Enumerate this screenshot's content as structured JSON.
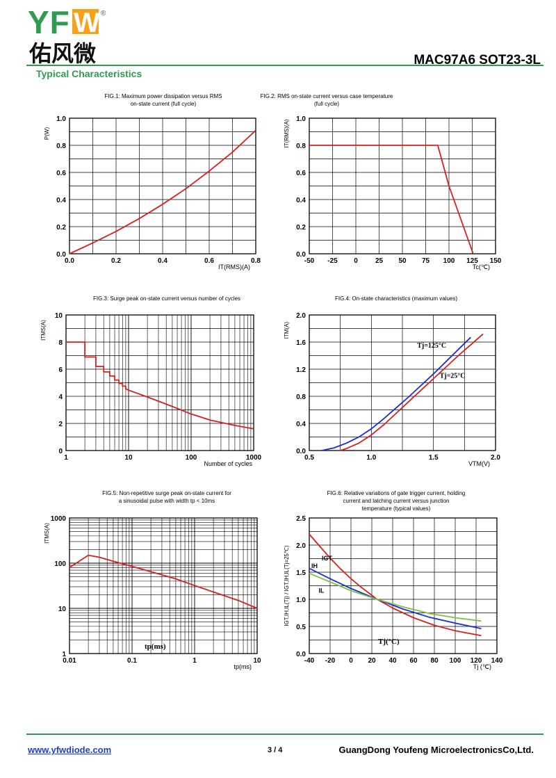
{
  "header": {
    "brand": "YFW",
    "brand_cn": "佑风微",
    "registered": "®",
    "part_number": "MAC97A6 SOT23-3L",
    "section": "Typical Characteristics"
  },
  "colors": {
    "green": "#2e9b4f",
    "red": "#d91e1e",
    "blue": "#1a2bd8",
    "lightgreen": "#7cc242",
    "orange": "#f4a21c"
  },
  "footer": {
    "website": "www.yfwdiode.com",
    "page": "3 / 4",
    "company": "GuangDong Youfeng MicroelectronicsCo,Ltd."
  },
  "chart_data": [
    {
      "id": "fig1",
      "type": "line",
      "title": [
        "FIG.1: Maximum power dissipation versus RMS",
        "on-state current (full cycle)"
      ],
      "ylabel": "P(W)",
      "xlabel": "I<sub>T(RMS)</sub>(A)",
      "xlabel_text": "IT(RMS)(A)",
      "xlim": [
        0,
        0.8
      ],
      "ylim": [
        0,
        1.0
      ],
      "xticks": [
        "0.0",
        "0.2",
        "0.4",
        "0.6",
        "0.8"
      ],
      "yticks": [
        "0.0",
        "0.2",
        "0.4",
        "0.6",
        "0.8",
        "1.0"
      ],
      "series": [
        {
          "color": "red",
          "x": [
            0,
            0.1,
            0.2,
            0.3,
            0.4,
            0.5,
            0.6,
            0.7,
            0.8
          ],
          "y": [
            0,
            0.08,
            0.165,
            0.26,
            0.365,
            0.48,
            0.61,
            0.75,
            0.91
          ]
        }
      ]
    },
    {
      "id": "fig2",
      "type": "line",
      "title": [
        "FIG.2: RMS on-state current versus case temperature",
        "(full cycle)"
      ],
      "ylabel": "IT(RMS)(A)",
      "xlabel_text": "Tc(℃)",
      "xlim": [
        -50,
        150
      ],
      "ylim": [
        0,
        1.0
      ],
      "xticks": [
        "-50",
        "-25",
        "0",
        "25",
        "50",
        "75",
        "100",
        "125",
        "150"
      ],
      "yticks": [
        "0.0",
        "0.2",
        "0.4",
        "0.6",
        "0.8",
        "1.0"
      ],
      "series": [
        {
          "color": "red",
          "x": [
            -50,
            88,
            100,
            126
          ],
          "y": [
            0.8,
            0.8,
            0.5,
            0
          ]
        }
      ]
    },
    {
      "id": "fig3",
      "type": "line",
      "title": [
        "FIG.3: Surge peak on-state current versus number of cycles"
      ],
      "ylabel": "ITMS(A)",
      "xlabel_text": "Number of cycles",
      "xscale": "log",
      "xlim": [
        1,
        1000
      ],
      "ylim": [
        0,
        10
      ],
      "xticks": [
        "1",
        "10",
        "100",
        "1000"
      ],
      "yticks": [
        "0",
        "2",
        "4",
        "6",
        "8",
        "10"
      ],
      "series": [
        {
          "color": "red",
          "x": [
            1,
            2,
            2,
            3,
            3,
            4,
            4,
            5,
            5,
            6,
            6,
            7,
            7,
            8,
            8,
            9,
            9,
            10,
            20,
            50,
            100,
            200,
            500,
            1000
          ],
          "y": [
            8,
            8,
            6.9,
            6.9,
            6.2,
            6.2,
            5.8,
            5.8,
            5.5,
            5.5,
            5.2,
            5.2,
            4.95,
            4.95,
            4.75,
            4.75,
            4.55,
            4.45,
            3.95,
            3.25,
            2.7,
            2.25,
            1.85,
            1.6
          ]
        }
      ]
    },
    {
      "id": "fig4",
      "type": "line",
      "title": [
        "FIG.4: On-state characteristics (maximum values)"
      ],
      "ylabel": "ITM(A)",
      "xlabel_text": "VTM(V)",
      "xlim": [
        0.5,
        2.0
      ],
      "ylim": [
        0,
        2.0
      ],
      "xticks": [
        "0.5",
        "1.0",
        "1.5",
        "2.0"
      ],
      "yticks": [
        "0.0",
        "0.4",
        "0.8",
        "1.2",
        "1.6",
        "2.0"
      ],
      "annotations": [
        "Tj=125°C",
        "Tj=25°C"
      ],
      "series": [
        {
          "name": "Tj=125°C",
          "color": "blue",
          "x": [
            0.6,
            0.7,
            0.8,
            0.9,
            1.0,
            1.1,
            1.2,
            1.3,
            1.4,
            1.5,
            1.6,
            1.7,
            1.8
          ],
          "y": [
            0,
            0.04,
            0.11,
            0.2,
            0.32,
            0.47,
            0.63,
            0.79,
            0.96,
            1.13,
            1.31,
            1.49,
            1.67
          ]
        },
        {
          "name": "Tj=25°C",
          "color": "red",
          "x": [
            0.75,
            0.8,
            0.9,
            1.0,
            1.1,
            1.2,
            1.3,
            1.4,
            1.5,
            1.6,
            1.7,
            1.8,
            1.9
          ],
          "y": [
            0,
            0.03,
            0.11,
            0.23,
            0.38,
            0.55,
            0.72,
            0.89,
            1.06,
            1.23,
            1.4,
            1.56,
            1.72
          ]
        }
      ]
    },
    {
      "id": "fig5",
      "type": "line",
      "title": [
        "FIG.5: Non-repetitive surge peak on-state current for",
        "a sinusoidal pulse with width tp < 10ms"
      ],
      "ylabel": "ITMS(A)",
      "xlabel_text": "tp(ms)",
      "annotation": "tp(ms)",
      "xscale": "log",
      "yscale": "log",
      "xlim": [
        0.01,
        10
      ],
      "ylim": [
        1,
        1000
      ],
      "xticks": [
        "0.01",
        "0.1",
        "1",
        "10"
      ],
      "yticks": [
        "1",
        "10",
        "100",
        "1000"
      ],
      "series": [
        {
          "color": "red",
          "x": [
            0.01,
            0.02,
            0.03,
            0.05,
            0.1,
            0.2,
            0.5,
            1,
            2,
            5,
            10
          ],
          "y": [
            80,
            150,
            135,
            110,
            85,
            65,
            45,
            32,
            23,
            15,
            10
          ]
        }
      ]
    },
    {
      "id": "fig6",
      "type": "line",
      "title": [
        "FIG.6: Relative variations of gate trigger current, holding",
        "current and latching current versus junction",
        "temperature (typical values)"
      ],
      "ylabel": "IGT,IH,IL(Tj) / IGT,IH,IL(Tj=25℃)",
      "xlabel_text": "Tj (℃)",
      "annotation": "Tj(°C)",
      "xlim": [
        -40,
        140
      ],
      "ylim": [
        0,
        2.5
      ],
      "xticks": [
        "-40",
        "-20",
        "0",
        "20",
        "40",
        "60",
        "80",
        "100",
        "120",
        "140"
      ],
      "yticks": [
        "0.0",
        "0.5",
        "1.0",
        "1.5",
        "2.0",
        "2.5"
      ],
      "series": [
        {
          "name": "IGT",
          "color": "red",
          "x": [
            -40,
            -30,
            -20,
            -10,
            0,
            10,
            25,
            40,
            60,
            80,
            100,
            125
          ],
          "y": [
            2.2,
            1.98,
            1.76,
            1.56,
            1.38,
            1.22,
            1.0,
            0.84,
            0.66,
            0.52,
            0.42,
            0.33
          ]
        },
        {
          "name": "IH",
          "color": "blue",
          "x": [
            -40,
            -20,
            0,
            25,
            50,
            75,
            100,
            125
          ],
          "y": [
            1.57,
            1.38,
            1.2,
            1.0,
            0.82,
            0.67,
            0.56,
            0.46
          ]
        },
        {
          "name": "IL",
          "color": "lightgreen",
          "x": [
            -40,
            -20,
            0,
            25,
            50,
            75,
            100,
            125
          ],
          "y": [
            1.48,
            1.32,
            1.16,
            1.0,
            0.86,
            0.74,
            0.66,
            0.6
          ]
        }
      ]
    }
  ]
}
